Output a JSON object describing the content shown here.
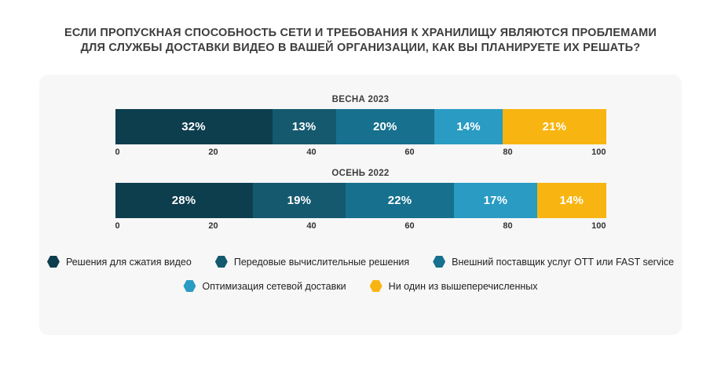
{
  "page": {
    "title_lines": [
      "ЕСЛИ ПРОПУСКНАЯ СПОСОБНОСТЬ СЕТИ И ТРЕБОВАНИЯ К ХРАНИЛИЩУ ЯВЛЯЮТСЯ ПРОБЛЕМАМИ",
      "ДЛЯ СЛУЖБЫ ДОСТАВКИ ВИДЕО В ВАШЕЙ ОРГАНИЗАЦИИ, КАК ВЫ ПЛАНИРУЕТЕ ИХ РЕШАТЬ?"
    ],
    "title_color": "#3d3d3d",
    "background_color": "#ffffff",
    "card_background_color": "#f7f7f8"
  },
  "chart_data": {
    "type": "bar",
    "subtype": "horizontal-stacked",
    "categories": [
      "ВЕСНА 2023",
      "ОСЕНЬ 2022"
    ],
    "series": [
      {
        "name": "Решения для сжатия видео",
        "color": "#0d3e4e",
        "values": [
          32,
          28
        ],
        "labels": [
          "32%",
          "28%"
        ]
      },
      {
        "name": "Передовые вычислительные решения",
        "color": "#15596f",
        "values": [
          13,
          19
        ],
        "labels": [
          "13%",
          "19%"
        ]
      },
      {
        "name": "Внешний поставщик услуг OTT или FAST service",
        "color": "#17708e",
        "values": [
          20,
          22
        ],
        "labels": [
          "20%",
          "22%"
        ]
      },
      {
        "name": "Оптимизация сетевой доставки",
        "color": "#2a9bc2",
        "values": [
          14,
          17
        ],
        "labels": [
          "14%",
          "17%"
        ]
      },
      {
        "name": "Ни один из вышеперечисленных",
        "color": "#f8b511",
        "values": [
          21,
          14
        ],
        "labels": [
          "21%",
          "14%"
        ]
      }
    ],
    "value_suffix": "%",
    "xlim": [
      0,
      100
    ],
    "x_ticks": [
      0,
      20,
      40,
      60,
      80,
      100
    ],
    "grid": false,
    "legend_position": "bottom",
    "legend_rows": [
      3,
      2
    ],
    "label_text_color": "#ffffff",
    "tick_text_color": "#333333"
  }
}
